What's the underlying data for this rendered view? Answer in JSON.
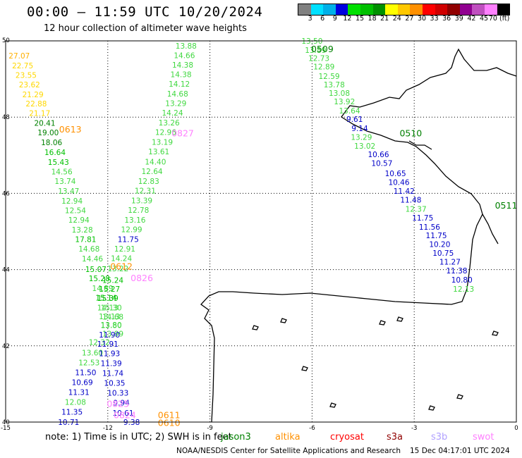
{
  "header": {
    "title": "00:00 – 11:59 UTC 10/20/2024",
    "subtitle": "12 hour collection of altimeter wave heights"
  },
  "scale": {
    "labels": [
      "3",
      "6",
      "9",
      "12",
      "15",
      "18",
      "21",
      "24",
      "27",
      "30",
      "33",
      "36",
      "39",
      "42",
      "45",
      "70 (ft)"
    ],
    "colors": [
      "#808080",
      "#00e0ff",
      "#00b0e8",
      "#0000e0",
      "#00e000",
      "#00c000",
      "#009000",
      "#ffff00",
      "#ffc800",
      "#ff9000",
      "#ff0000",
      "#d00000",
      "#900000",
      "#900090",
      "#c050c0",
      "#ff80ff",
      "#000000"
    ]
  },
  "map": {
    "lon_range": [
      -15,
      0
    ],
    "lat_range": [
      40,
      50
    ],
    "lon_ticks": [
      "-15",
      "-12",
      "-9",
      "-6",
      "-3",
      "0"
    ],
    "lat_ticks": [
      "50",
      "48",
      "46",
      "44",
      "42",
      "40"
    ]
  },
  "tracks": [
    {
      "kind": "plain",
      "labels": [
        {
          "lon": -14.6,
          "lat": 49.54,
          "text": "27.07",
          "color": "#ffb000"
        },
        {
          "lon": -14.5,
          "lat": 49.28,
          "text": "22.75",
          "color": "#ffd800"
        },
        {
          "lon": -14.4,
          "lat": 49.03,
          "text": "23.55",
          "color": "#ffd800"
        },
        {
          "lon": -14.3,
          "lat": 48.78,
          "text": "23.62",
          "color": "#ffd800"
        },
        {
          "lon": -14.2,
          "lat": 48.52,
          "text": "21.29",
          "color": "#ffd800"
        },
        {
          "lon": -14.1,
          "lat": 48.28,
          "text": "22.88",
          "color": "#ffd800"
        },
        {
          "lon": -14.0,
          "lat": 48.03,
          "text": "21.17",
          "color": "#ffd800"
        },
        {
          "lon": -13.85,
          "lat": 47.77,
          "text": "20.41",
          "color": "#008000"
        },
        {
          "lon": -13.75,
          "lat": 47.52,
          "text": "19.00",
          "color": "#008000"
        },
        {
          "lon": -13.65,
          "lat": 47.26,
          "text": "18.06",
          "color": "#008000"
        },
        {
          "lon": -13.55,
          "lat": 47.01,
          "text": "16.64",
          "color": "#00c000"
        },
        {
          "lon": -13.45,
          "lat": 46.75,
          "text": "15.43",
          "color": "#00c000"
        },
        {
          "lon": -13.35,
          "lat": 46.5,
          "text": "14.56",
          "color": "#40d840"
        },
        {
          "lon": -13.25,
          "lat": 46.25,
          "text": "13.74",
          "color": "#40d840"
        },
        {
          "lon": -13.15,
          "lat": 45.99,
          "text": "13.47",
          "color": "#40d840"
        },
        {
          "lon": -13.05,
          "lat": 45.73,
          "text": "12.94",
          "color": "#40d840"
        },
        {
          "lon": -12.95,
          "lat": 45.48,
          "text": "12.54",
          "color": "#40d840"
        },
        {
          "lon": -12.85,
          "lat": 45.23,
          "text": "12.94",
          "color": "#40d840"
        },
        {
          "lon": -12.75,
          "lat": 44.97,
          "text": "13.28",
          "color": "#40d840"
        },
        {
          "lon": -12.65,
          "lat": 44.72,
          "text": "17.81",
          "color": "#00c000"
        },
        {
          "lon": -12.55,
          "lat": 44.47,
          "text": "14.68",
          "color": "#40d840"
        },
        {
          "lon": -12.45,
          "lat": 44.21,
          "text": "14.46",
          "color": "#40d840"
        },
        {
          "lon": -12.35,
          "lat": 43.94,
          "text": "15.07",
          "color": "#00c000"
        },
        {
          "lon": -12.25,
          "lat": 43.7,
          "text": "15.28",
          "color": "#00c000"
        },
        {
          "lon": -12.15,
          "lat": 43.44,
          "text": "14.89",
          "color": "#40d840"
        },
        {
          "lon": -12.05,
          "lat": 43.19,
          "text": "15.14",
          "color": "#00c000"
        },
        {
          "lon": -12.0,
          "lat": 42.93,
          "text": "14.13",
          "color": "#40d840"
        },
        {
          "lon": -11.95,
          "lat": 42.7,
          "text": "13.13",
          "color": "#40d840"
        },
        {
          "lon": -11.9,
          "lat": 42.48,
          "text": "13.80",
          "color": "#40d840"
        },
        {
          "lon": -11.85,
          "lat": 42.25,
          "text": "13.99",
          "color": "#40d840"
        },
        {
          "lon": -12.25,
          "lat": 42.02,
          "text": "12.32",
          "color": "#40d840"
        },
        {
          "lon": -12.45,
          "lat": 41.75,
          "text": "13.60",
          "color": "#40d840"
        },
        {
          "lon": -12.55,
          "lat": 41.49,
          "text": "12.53",
          "color": "#40d840"
        },
        {
          "lon": -12.65,
          "lat": 41.23,
          "text": "11.50",
          "color": "#0000c8"
        },
        {
          "lon": -12.75,
          "lat": 40.97,
          "text": "10.69",
          "color": "#0000c8"
        },
        {
          "lon": -12.85,
          "lat": 40.71,
          "text": "11.31",
          "color": "#0000c8"
        },
        {
          "lon": -12.95,
          "lat": 40.45,
          "text": "12.08",
          "color": "#40d840"
        },
        {
          "lon": -13.05,
          "lat": 40.19,
          "text": "11.35",
          "color": "#0000c8"
        },
        {
          "lon": -13.15,
          "lat": 39.93,
          "text": "10.71",
          "color": "#0000c8"
        }
      ]
    },
    {
      "kind": "plain",
      "labels": [
        {
          "lon": -9.7,
          "lat": 49.8,
          "text": "13.88",
          "color": "#40d840"
        },
        {
          "lon": -9.75,
          "lat": 49.55,
          "text": "14.66",
          "color": "#40d840"
        },
        {
          "lon": -9.8,
          "lat": 49.3,
          "text": "14.38",
          "color": "#40d840"
        },
        {
          "lon": -9.85,
          "lat": 49.05,
          "text": "14.38",
          "color": "#40d840"
        },
        {
          "lon": -9.9,
          "lat": 48.8,
          "text": "14.12",
          "color": "#40d840"
        },
        {
          "lon": -9.95,
          "lat": 48.54,
          "text": "14.68",
          "color": "#40d840"
        },
        {
          "lon": -10.0,
          "lat": 48.29,
          "text": "13.29",
          "color": "#40d840"
        },
        {
          "lon": -10.1,
          "lat": 48.04,
          "text": "14.24",
          "color": "#40d840"
        },
        {
          "lon": -10.2,
          "lat": 47.78,
          "text": "13.26",
          "color": "#40d840"
        },
        {
          "lon": -10.3,
          "lat": 47.53,
          "text": "12.96",
          "color": "#40d840"
        },
        {
          "lon": -10.4,
          "lat": 47.27,
          "text": "13.19",
          "color": "#40d840"
        },
        {
          "lon": -10.5,
          "lat": 47.02,
          "text": "13.61",
          "color": "#40d840"
        },
        {
          "lon": -10.6,
          "lat": 46.76,
          "text": "14.40",
          "color": "#40d840"
        },
        {
          "lon": -10.7,
          "lat": 46.51,
          "text": "12.64",
          "color": "#40d840"
        },
        {
          "lon": -10.8,
          "lat": 46.25,
          "text": "12.83",
          "color": "#40d840"
        },
        {
          "lon": -10.9,
          "lat": 46.0,
          "text": "12.31",
          "color": "#40d840"
        },
        {
          "lon": -11.0,
          "lat": 45.74,
          "text": "13.39",
          "color": "#40d840"
        },
        {
          "lon": -11.1,
          "lat": 45.49,
          "text": "12.78",
          "color": "#40d840"
        },
        {
          "lon": -11.2,
          "lat": 45.23,
          "text": "13.16",
          "color": "#40d840"
        },
        {
          "lon": -11.3,
          "lat": 44.98,
          "text": "12.99",
          "color": "#40d840"
        },
        {
          "lon": -11.4,
          "lat": 44.72,
          "text": "11.75",
          "color": "#0000c8"
        },
        {
          "lon": -11.5,
          "lat": 44.47,
          "text": "12.91",
          "color": "#40d840"
        },
        {
          "lon": -11.6,
          "lat": 44.22,
          "text": "14.24",
          "color": "#40d840"
        },
        {
          "lon": -11.7,
          "lat": 43.96,
          "text": "13.22",
          "color": "#40d840"
        },
        {
          "lon": -11.85,
          "lat": 43.65,
          "text": "15.24",
          "color": "#00c000"
        },
        {
          "lon": -11.95,
          "lat": 43.42,
          "text": "15.27",
          "color": "#00c000"
        },
        {
          "lon": -12.0,
          "lat": 43.18,
          "text": "15.39",
          "color": "#00c000"
        },
        {
          "lon": -11.9,
          "lat": 42.93,
          "text": "15.30",
          "color": "#40d840"
        },
        {
          "lon": -11.85,
          "lat": 42.69,
          "text": "14.68",
          "color": "#40d840"
        },
        {
          "lon": -11.9,
          "lat": 42.47,
          "text": "13.80",
          "color": "#40d840"
        },
        {
          "lon": -11.95,
          "lat": 42.22,
          "text": "11.90",
          "color": "#0000c8"
        },
        {
          "lon": -12.0,
          "lat": 41.98,
          "text": "11.91",
          "color": "#0000c8"
        },
        {
          "lon": -11.95,
          "lat": 41.73,
          "text": "11.93",
          "color": "#0000c8"
        },
        {
          "lon": -11.9,
          "lat": 41.47,
          "text": "11.39",
          "color": "#0000c8"
        },
        {
          "lon": -11.85,
          "lat": 41.21,
          "text": "11.74",
          "color": "#0000c8"
        },
        {
          "lon": -11.8,
          "lat": 40.95,
          "text": "10.35",
          "color": "#0000c8"
        },
        {
          "lon": -11.7,
          "lat": 40.69,
          "text": "10.33",
          "color": "#0000c8"
        },
        {
          "lon": -11.6,
          "lat": 40.43,
          "text": "9.94",
          "color": "#0000c8"
        },
        {
          "lon": -11.55,
          "lat": 40.17,
          "text": "10.61",
          "color": "#0000c8"
        },
        {
          "lon": -11.3,
          "lat": 39.93,
          "text": "9.38",
          "color": "#0000c8"
        }
      ]
    },
    {
      "kind": "plain",
      "labels": [
        {
          "lon": -6.0,
          "lat": 49.93,
          "text": "13.50",
          "color": "#40d840"
        },
        {
          "lon": -5.9,
          "lat": 49.69,
          "text": "13.89",
          "color": "#40d840"
        },
        {
          "lon": -5.8,
          "lat": 49.47,
          "text": "12.73",
          "color": "#40d840"
        },
        {
          "lon": -5.65,
          "lat": 49.25,
          "text": "12.89",
          "color": "#40d840"
        },
        {
          "lon": -5.5,
          "lat": 49.0,
          "text": "12.59",
          "color": "#40d840"
        },
        {
          "lon": -5.35,
          "lat": 48.78,
          "text": "13.78",
          "color": "#40d840"
        },
        {
          "lon": -5.2,
          "lat": 48.56,
          "text": "13.08",
          "color": "#40d840"
        },
        {
          "lon": -5.05,
          "lat": 48.34,
          "text": "13.92",
          "color": "#40d840"
        },
        {
          "lon": -4.9,
          "lat": 48.1,
          "text": "13.64",
          "color": "#40d840"
        },
        {
          "lon": -4.75,
          "lat": 47.87,
          "text": "9.61",
          "color": "#0000c8"
        },
        {
          "lon": -4.6,
          "lat": 47.63,
          "text": "9.14",
          "color": "#0000c8"
        },
        {
          "lon": -4.55,
          "lat": 47.4,
          "text": "13.29",
          "color": "#40d840"
        },
        {
          "lon": -4.45,
          "lat": 47.17,
          "text": "13.02",
          "color": "#40d840"
        },
        {
          "lon": -4.05,
          "lat": 46.95,
          "text": "10.66",
          "color": "#0000c8"
        },
        {
          "lon": -3.95,
          "lat": 46.72,
          "text": "10.57",
          "color": "#0000c8"
        },
        {
          "lon": -3.55,
          "lat": 46.45,
          "text": "10.65",
          "color": "#0000c8"
        },
        {
          "lon": -3.45,
          "lat": 46.22,
          "text": "10.46",
          "color": "#0000c8"
        },
        {
          "lon": -3.3,
          "lat": 45.99,
          "text": "11.42",
          "color": "#0000c8"
        },
        {
          "lon": -3.1,
          "lat": 45.76,
          "text": "11.48",
          "color": "#0000c8"
        },
        {
          "lon": -2.95,
          "lat": 45.52,
          "text": "12.37",
          "color": "#40d840"
        },
        {
          "lon": -2.75,
          "lat": 45.29,
          "text": "11.75",
          "color": "#0000c8"
        },
        {
          "lon": -2.55,
          "lat": 45.05,
          "text": "11.56",
          "color": "#0000c8"
        },
        {
          "lon": -2.35,
          "lat": 44.82,
          "text": "11.75",
          "color": "#0000c8"
        },
        {
          "lon": -2.25,
          "lat": 44.59,
          "text": "10.20",
          "color": "#0000c8"
        },
        {
          "lon": -2.15,
          "lat": 44.36,
          "text": "10.75",
          "color": "#0000c8"
        },
        {
          "lon": -1.95,
          "lat": 44.13,
          "text": "11.27",
          "color": "#0000c8"
        },
        {
          "lon": -1.75,
          "lat": 43.9,
          "text": "11.38",
          "color": "#0000c8"
        },
        {
          "lon": -1.6,
          "lat": 43.66,
          "text": "10.80",
          "color": "#0000c8"
        },
        {
          "lon": -1.55,
          "lat": 43.42,
          "text": "12.13",
          "color": "#40d840"
        }
      ]
    },
    {
      "kind": "time",
      "labels": [
        {
          "lon": -5.7,
          "lat": 49.7,
          "text": "0509",
          "color": "#008000"
        },
        {
          "lon": -13.1,
          "lat": 47.6,
          "text": "0613",
          "color": "#ff9000"
        },
        {
          "lon": -9.8,
          "lat": 47.5,
          "text": "0827",
          "color": "#ff80ff"
        },
        {
          "lon": -3.1,
          "lat": 47.5,
          "text": "0510",
          "color": "#008000"
        },
        {
          "lon": -0.3,
          "lat": 45.6,
          "text": "0511",
          "color": "#008000"
        },
        {
          "lon": -11.6,
          "lat": 44.0,
          "text": "0612",
          "color": "#ff9000"
        },
        {
          "lon": -11.0,
          "lat": 43.7,
          "text": "0826",
          "color": "#ff80ff"
        },
        {
          "lon": -11.7,
          "lat": 40.4,
          "text": "0825",
          "color": "#ff80ff"
        },
        {
          "lon": -11.5,
          "lat": 40.1,
          "text": "0824",
          "color": "#ff80ff"
        },
        {
          "lon": -10.2,
          "lat": 40.1,
          "text": "0611",
          "color": "#ff9000"
        },
        {
          "lon": -10.2,
          "lat": 39.9,
          "text": "0610",
          "color": "#ff9000"
        }
      ]
    }
  ],
  "note": {
    "prefix": "note: 1) Time is in UTC; 2) SWH is in feet",
    "jason3": {
      "text": "jason3",
      "color": "#008000"
    },
    "altika": {
      "text": "altika",
      "color": "#ff9000"
    },
    "cryosat": {
      "text": "cryosat",
      "color": "#ff0000"
    },
    "s3a": {
      "text": "s3a",
      "color": "#900000"
    },
    "s3b": {
      "text": "s3b",
      "color": "#b0a0ff"
    },
    "swot": {
      "text": "swot",
      "color": "#ff80ff"
    }
  },
  "footer": {
    "org": "NOAA/NESDIS Center for Satellite Applications and Research",
    "generated": "15 Dec 04:17:01 UTC 2024"
  }
}
